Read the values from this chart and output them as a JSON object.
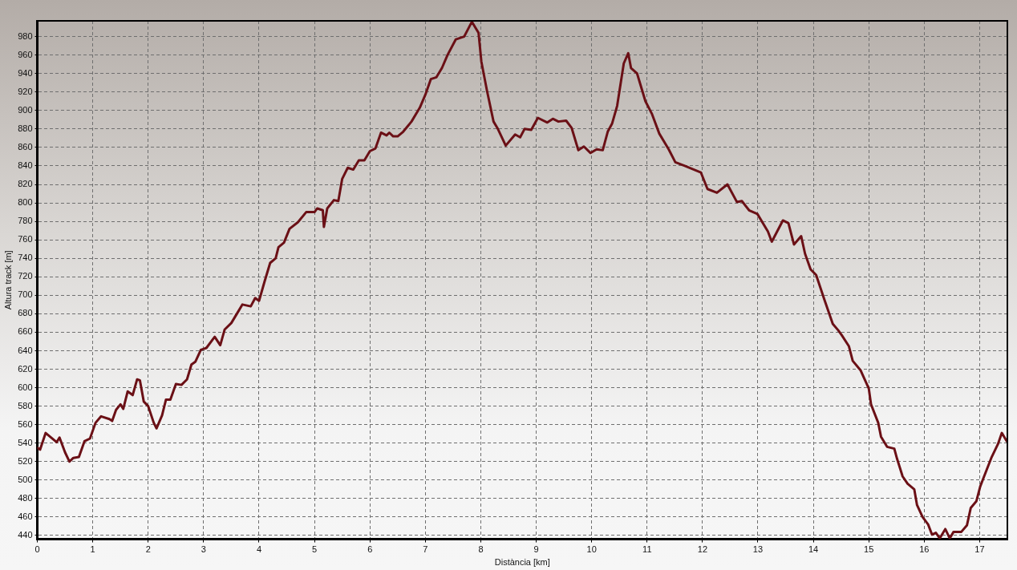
{
  "chart_data": {
    "type": "line",
    "xlabel": "Distància [km]",
    "ylabel": "Altura track [m]",
    "xlim": [
      0,
      17.5
    ],
    "xticks": [
      0,
      1,
      2,
      3,
      4,
      5,
      6,
      7,
      8,
      9,
      10,
      11,
      12,
      13,
      14,
      15,
      16,
      17
    ],
    "ylim": [
      436,
      997
    ],
    "yticks": [
      440,
      460,
      480,
      500,
      520,
      540,
      560,
      580,
      600,
      620,
      640,
      660,
      680,
      700,
      720,
      740,
      760,
      780,
      800,
      820,
      840,
      860,
      880,
      900,
      920,
      940,
      960,
      980
    ],
    "grid": true,
    "marker": "none",
    "line_style": "solid",
    "series": [
      {
        "color": "#6b1016",
        "x": [
          0,
          0.05,
          0.15,
          0.25,
          0.35,
          0.4,
          0.5,
          0.58,
          0.65,
          0.75,
          0.85,
          0.95,
          1.05,
          1.15,
          1.3,
          1.35,
          1.42,
          1.5,
          1.55,
          1.63,
          1.72,
          1.8,
          1.85,
          1.92,
          2.0,
          2.1,
          2.15,
          2.25,
          2.32,
          2.4,
          2.5,
          2.6,
          2.7,
          2.78,
          2.85,
          2.95,
          3.05,
          3.2,
          3.3,
          3.38,
          3.5,
          3.6,
          3.7,
          3.85,
          3.93,
          4.0,
          4.1,
          4.2,
          4.3,
          4.35,
          4.45,
          4.55,
          4.7,
          4.85,
          5.0,
          5.05,
          5.15,
          5.17,
          5.23,
          5.35,
          5.43,
          5.5,
          5.6,
          5.7,
          5.8,
          5.9,
          6.0,
          6.1,
          6.2,
          6.3,
          6.35,
          6.42,
          6.5,
          6.6,
          6.75,
          6.9,
          7.0,
          7.1,
          7.2,
          7.3,
          7.4,
          7.55,
          7.7,
          7.84,
          7.96,
          8.01,
          8.11,
          8.23,
          8.3,
          8.45,
          8.62,
          8.71,
          8.79,
          8.91,
          9.03,
          9.2,
          9.3,
          9.4,
          9.54,
          9.64,
          9.76,
          9.86,
          9.98,
          10.09,
          10.2,
          10.29,
          10.37,
          10.46,
          10.58,
          10.66,
          10.71,
          10.82,
          10.97,
          11.09,
          11.22,
          11.39,
          11.51,
          11.68,
          11.97,
          12.09,
          12.26,
          12.45,
          12.62,
          12.71,
          12.84,
          12.99,
          13.18,
          13.25,
          13.45,
          13.55,
          13.65,
          13.78,
          13.85,
          13.95,
          14.05,
          14.2,
          14.35,
          14.45,
          14.51,
          14.64,
          14.71,
          14.85,
          15.0,
          15.04,
          15.17,
          15.22,
          15.33,
          15.46,
          15.51,
          15.61,
          15.7,
          15.82,
          15.87,
          15.97,
          16.07,
          16.14,
          16.21,
          16.28,
          16.38,
          16.46,
          16.53,
          16.67,
          16.77,
          16.84,
          16.94,
          17.01,
          17.08,
          17.21,
          17.33,
          17.4,
          17.49
        ],
        "values": [
          535,
          533,
          551,
          546,
          541,
          546,
          530,
          520,
          524,
          525,
          542,
          545,
          562,
          569,
          566,
          564,
          576,
          582,
          577,
          596,
          592,
          609,
          608,
          585,
          580,
          562,
          556,
          570,
          587,
          587,
          604,
          603,
          609,
          625,
          628,
          641,
          643,
          655,
          646,
          663,
          670,
          680,
          690,
          688,
          697,
          694,
          715,
          735,
          740,
          752,
          757,
          772,
          779,
          790,
          790,
          794,
          792,
          774,
          794,
          803,
          802,
          826,
          838,
          836,
          846,
          846,
          856,
          859,
          876,
          873,
          876,
          872,
          872,
          877,
          888,
          903,
          917,
          934,
          936,
          946,
          960,
          977,
          980,
          996,
          984,
          953,
          922,
          888,
          881,
          862,
          874,
          871,
          880,
          879,
          892,
          887,
          891,
          888,
          889,
          881,
          857,
          861,
          854,
          858,
          857,
          877,
          886,
          905,
          951,
          962,
          946,
          940,
          910,
          896,
          875,
          858,
          844,
          840,
          833,
          815,
          811,
          820,
          801,
          802,
          792,
          788,
          769,
          758,
          781,
          778,
          755,
          764,
          745,
          728,
          722,
          695,
          669,
          662,
          657,
          645,
          629,
          619,
          599,
          582,
          562,
          547,
          536,
          534,
          523,
          504,
          496,
          490,
          473,
          460,
          452,
          441,
          443,
          437,
          447,
          437,
          444,
          444,
          451,
          470,
          477,
          493,
          504,
          524,
          539,
          551,
          542
        ]
      }
    ]
  }
}
